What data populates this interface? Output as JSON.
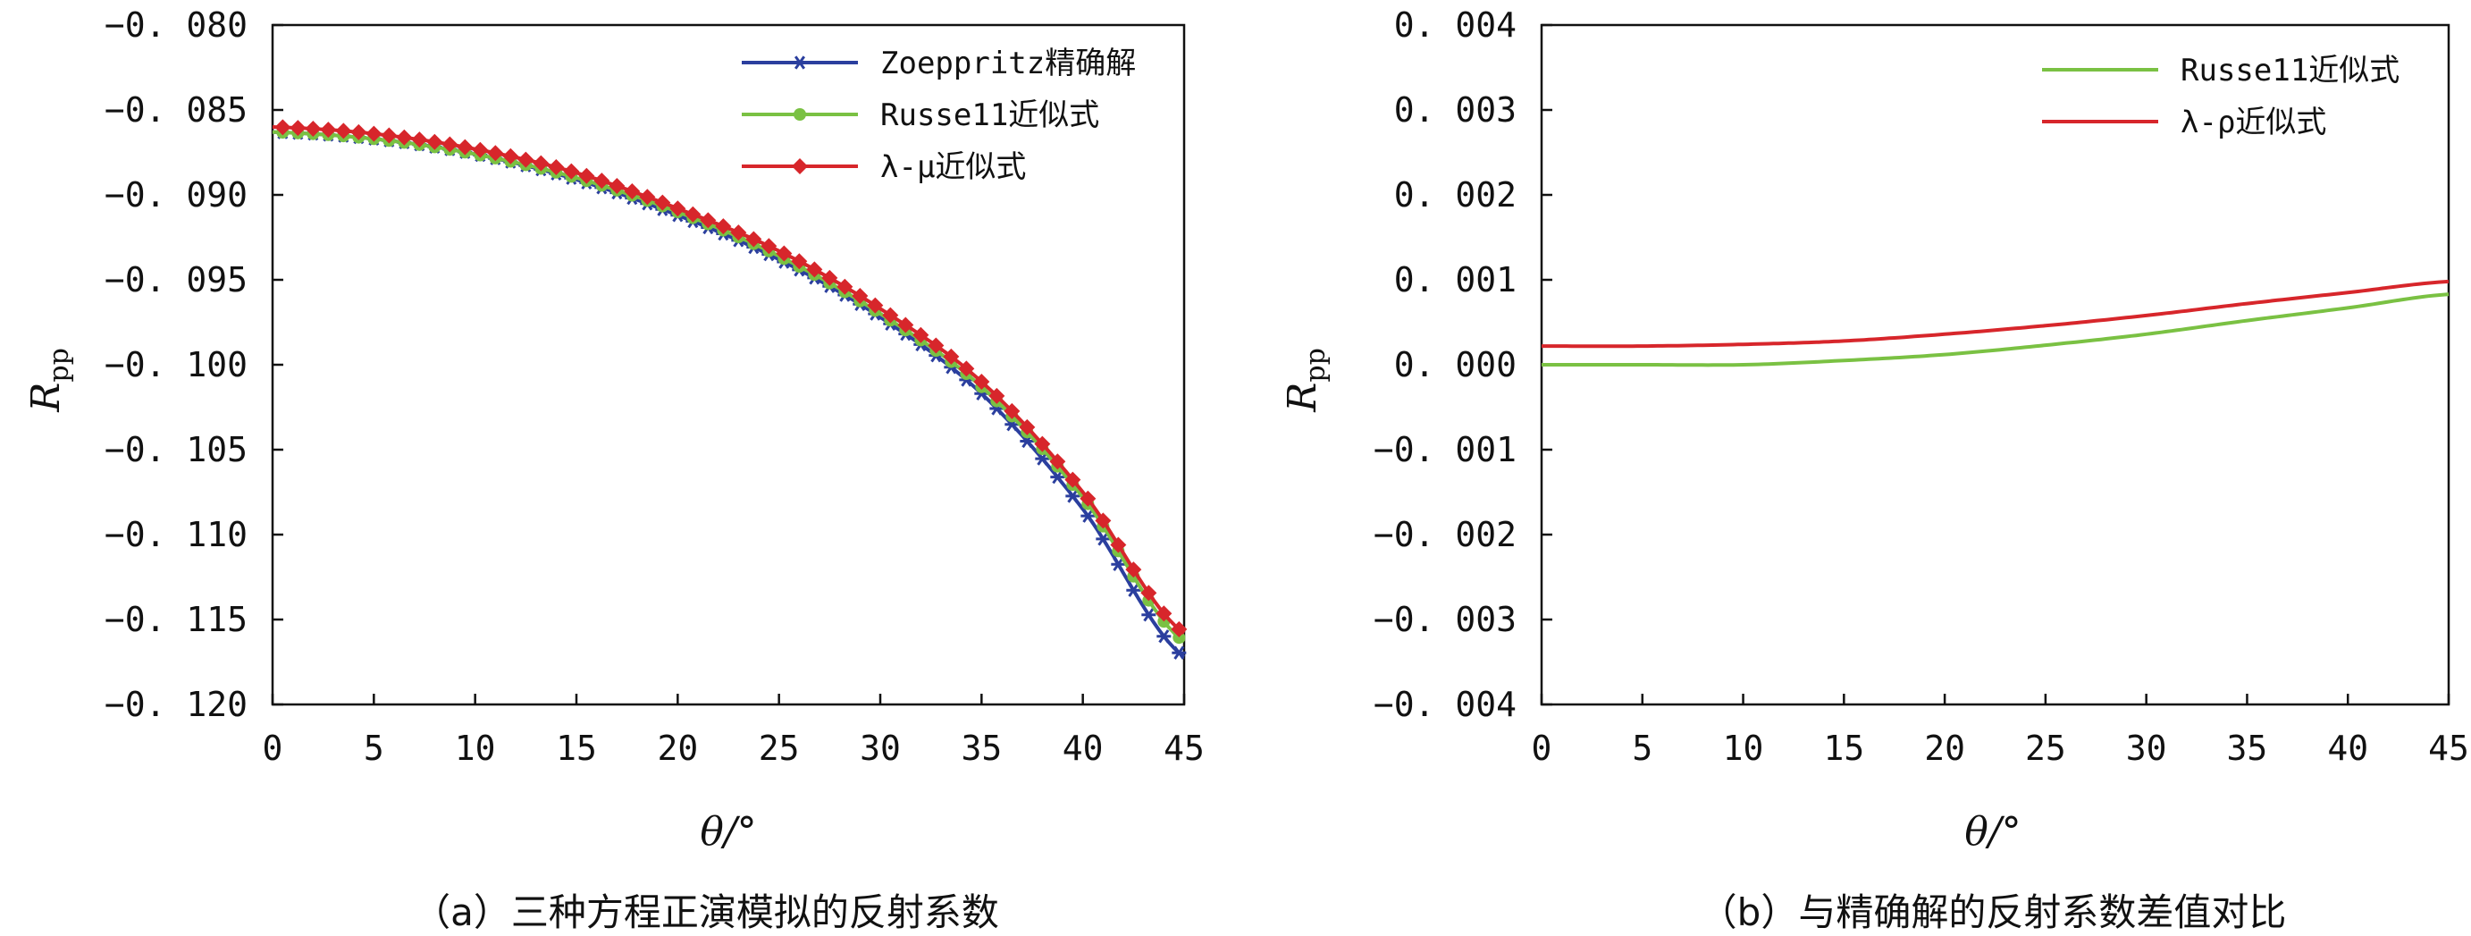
{
  "chart_data": [
    {
      "type": "line",
      "caption": "（a）三种方程正演模拟的反射系数",
      "xlabel": "θ/°",
      "ylabel": "R",
      "ylabel_sub": "pp",
      "xlim": [
        0,
        45
      ],
      "ylim": [
        -0.12,
        -0.08
      ],
      "xticks": [
        0,
        5,
        10,
        15,
        20,
        25,
        30,
        35,
        40,
        45
      ],
      "xtick_labels": [
        "0",
        "5",
        "10",
        "15",
        "20",
        "25",
        "30",
        "35",
        "40",
        "45"
      ],
      "yticks": [
        -0.08,
        -0.085,
        -0.09,
        -0.095,
        -0.1,
        -0.105,
        -0.11,
        -0.115,
        -0.12
      ],
      "ytick_labels": [
        "−0. 080",
        "−0. 085",
        "−0. 090",
        "−0. 095",
        "−0. 100",
        "−0. 105",
        "−0. 110",
        "−0. 115",
        "−0. 120"
      ],
      "legend_position": "top-right",
      "x": [
        0,
        5,
        10,
        15,
        20,
        25,
        30,
        35,
        40,
        45
      ],
      "series": [
        {
          "name": "Zoeppritz精确解",
          "color": "#2b3f9e",
          "marker": "asterisk",
          "values": [
            -0.0863,
            -0.0867,
            -0.0876,
            -0.0891,
            -0.0912,
            -0.0938,
            -0.0972,
            -0.1017,
            -0.1085,
            -0.1172
          ]
        },
        {
          "name": "Russe11近似式",
          "color": "#7ac143",
          "marker": "circle",
          "values": [
            -0.0863,
            -0.0867,
            -0.0876,
            -0.089,
            -0.091,
            -0.0936,
            -0.097,
            -0.1013,
            -0.1078,
            -0.1163
          ]
        },
        {
          "name": "λ-μ近似式",
          "color": "#d7262b",
          "marker": "diamond",
          "values": [
            -0.086,
            -0.0864,
            -0.0873,
            -0.0887,
            -0.0908,
            -0.0933,
            -0.0967,
            -0.101,
            -0.1075,
            -0.1158
          ]
        }
      ]
    },
    {
      "type": "line",
      "caption": "（b）与精确解的反射系数差值对比",
      "xlabel": "θ/°",
      "ylabel": "R",
      "ylabel_sub": "pp",
      "xlim": [
        0,
        45
      ],
      "ylim": [
        -0.004,
        0.004
      ],
      "xticks": [
        0,
        5,
        10,
        15,
        20,
        25,
        30,
        35,
        40,
        45
      ],
      "xtick_labels": [
        "0",
        "5",
        "10",
        "15",
        "20",
        "25",
        "30",
        "35",
        "40",
        "45"
      ],
      "yticks": [
        0.004,
        0.003,
        0.002,
        0.001,
        0.0,
        -0.001,
        -0.002,
        -0.003,
        -0.004
      ],
      "ytick_labels": [
        "0. 004",
        "0. 003",
        "0. 002",
        "0. 001",
        "0. 000",
        "−0. 001",
        "−0. 002",
        "−0. 003",
        "−0. 004"
      ],
      "legend_position": "top-right",
      "x": [
        0,
        5,
        10,
        15,
        20,
        25,
        30,
        35,
        40,
        45
      ],
      "series": [
        {
          "name": "Russe11近似式",
          "color": "#7ac143",
          "values": [
            0.0,
            0.0,
            0.0,
            5e-05,
            0.00012,
            0.00023,
            0.00036,
            0.00052,
            0.00067,
            0.00083
          ]
        },
        {
          "name": "λ-ρ近似式",
          "color": "#d7262b",
          "values": [
            0.00022,
            0.00022,
            0.00024,
            0.00028,
            0.00036,
            0.00046,
            0.00058,
            0.00072,
            0.00085,
            0.00098
          ]
        }
      ]
    }
  ]
}
